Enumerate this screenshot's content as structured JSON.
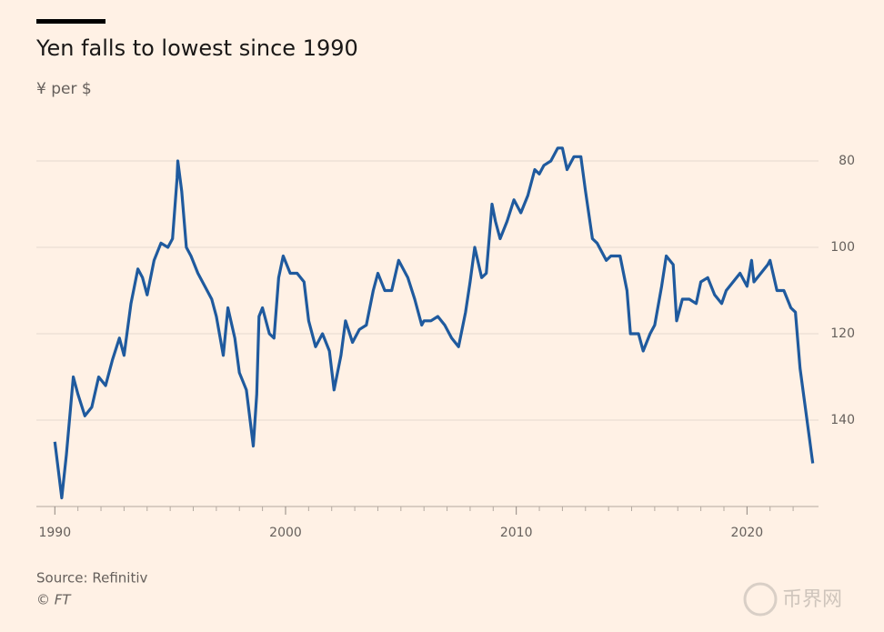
{
  "chart_data": {
    "type": "line",
    "title": "Yen falls to lowest since 1990",
    "subtitle": "¥ per $",
    "source": "Source: Refinitiv",
    "copyright": "© FT",
    "watermark": "币界网",
    "x": [
      1990.0,
      1990.3,
      1990.5,
      1990.8,
      1991.0,
      1991.3,
      1991.6,
      1991.9,
      1992.2,
      1992.5,
      1992.8,
      1993.0,
      1993.3,
      1993.6,
      1993.8,
      1994.0,
      1994.3,
      1994.6,
      1994.9,
      1995.1,
      1995.3,
      1995.33,
      1995.5,
      1995.7,
      1995.9,
      1996.2,
      1996.5,
      1996.8,
      1997.0,
      1997.3,
      1997.5,
      1997.8,
      1998.0,
      1998.3,
      1998.6,
      1998.75,
      1998.85,
      1999.0,
      1999.3,
      1999.5,
      1999.7,
      1999.9,
      2000.2,
      2000.5,
      2000.8,
      2001.0,
      2001.3,
      2001.6,
      2001.9,
      2002.1,
      2002.4,
      2002.6,
      2002.9,
      2003.2,
      2003.5,
      2003.8,
      2004.0,
      2004.3,
      2004.6,
      2004.9,
      2005.0,
      2005.3,
      2005.6,
      2005.9,
      2006.0,
      2006.3,
      2006.6,
      2006.9,
      2007.2,
      2007.5,
      2007.8,
      2008.0,
      2008.2,
      2008.5,
      2008.7,
      2008.95,
      2009.1,
      2009.3,
      2009.6,
      2009.9,
      2010.2,
      2010.5,
      2010.8,
      2011.0,
      2011.2,
      2011.5,
      2011.8,
      2012.0,
      2012.2,
      2012.5,
      2012.8,
      2013.0,
      2013.3,
      2013.5,
      2013.9,
      2014.1,
      2014.5,
      2014.8,
      2014.95,
      2015.3,
      2015.5,
      2015.8,
      2016.0,
      2016.3,
      2016.5,
      2016.8,
      2016.95,
      2017.2,
      2017.5,
      2017.8,
      2018.0,
      2018.3,
      2018.6,
      2018.9,
      2019.1,
      2019.4,
      2019.7,
      2020.0,
      2020.2,
      2020.3,
      2020.6,
      2020.9,
      2021.0,
      2021.3,
      2021.6,
      2021.9,
      2022.1,
      2022.3,
      2022.5,
      2022.7,
      2022.8,
      2022.85
    ],
    "series": [
      {
        "color": "#1f5a9e",
        "values": [
          145,
          158,
          148,
          130,
          134,
          139,
          137,
          130,
          132,
          126,
          121,
          125,
          113,
          105,
          107,
          111,
          103,
          99,
          100,
          98,
          84,
          80,
          87,
          100,
          102,
          106,
          109,
          112,
          116,
          125,
          114,
          121,
          129,
          133,
          146,
          134,
          116,
          114,
          120,
          121,
          107,
          102,
          106,
          106,
          108,
          117,
          123,
          120,
          124,
          133,
          125,
          117,
          122,
          119,
          118,
          110,
          106,
          110,
          110,
          103,
          104,
          107,
          112,
          118,
          117,
          117,
          116,
          118,
          121,
          123,
          115,
          108,
          100,
          107,
          106,
          90,
          94,
          98,
          94,
          89,
          92,
          88,
          82,
          83,
          81,
          80,
          77,
          77,
          82,
          79,
          79,
          87,
          98,
          99,
          103,
          102,
          102,
          110,
          120,
          120,
          124,
          120,
          118,
          109,
          102,
          104,
          117,
          112,
          112,
          113,
          108,
          107,
          111,
          113,
          110,
          108,
          106,
          109,
          103,
          108,
          106,
          104,
          103,
          110,
          110,
          114,
          115,
          128,
          136,
          144,
          148,
          150
        ]
      }
    ],
    "xlim": [
      1989.2,
      2023.1
    ],
    "ylim": [
      160,
      74
    ],
    "xticks": [
      1990,
      2000,
      2010,
      2020
    ],
    "minor_xticks": [
      1991,
      1992,
      1993,
      1994,
      1995,
      1996,
      1997,
      1998,
      1999,
      2001,
      2002,
      2003,
      2004,
      2005,
      2006,
      2007,
      2008,
      2009,
      2011,
      2012,
      2013,
      2014,
      2015,
      2016,
      2017,
      2018,
      2019,
      2021,
      2022
    ],
    "yticks": [
      80,
      100,
      120,
      140
    ],
    "grid": true
  }
}
